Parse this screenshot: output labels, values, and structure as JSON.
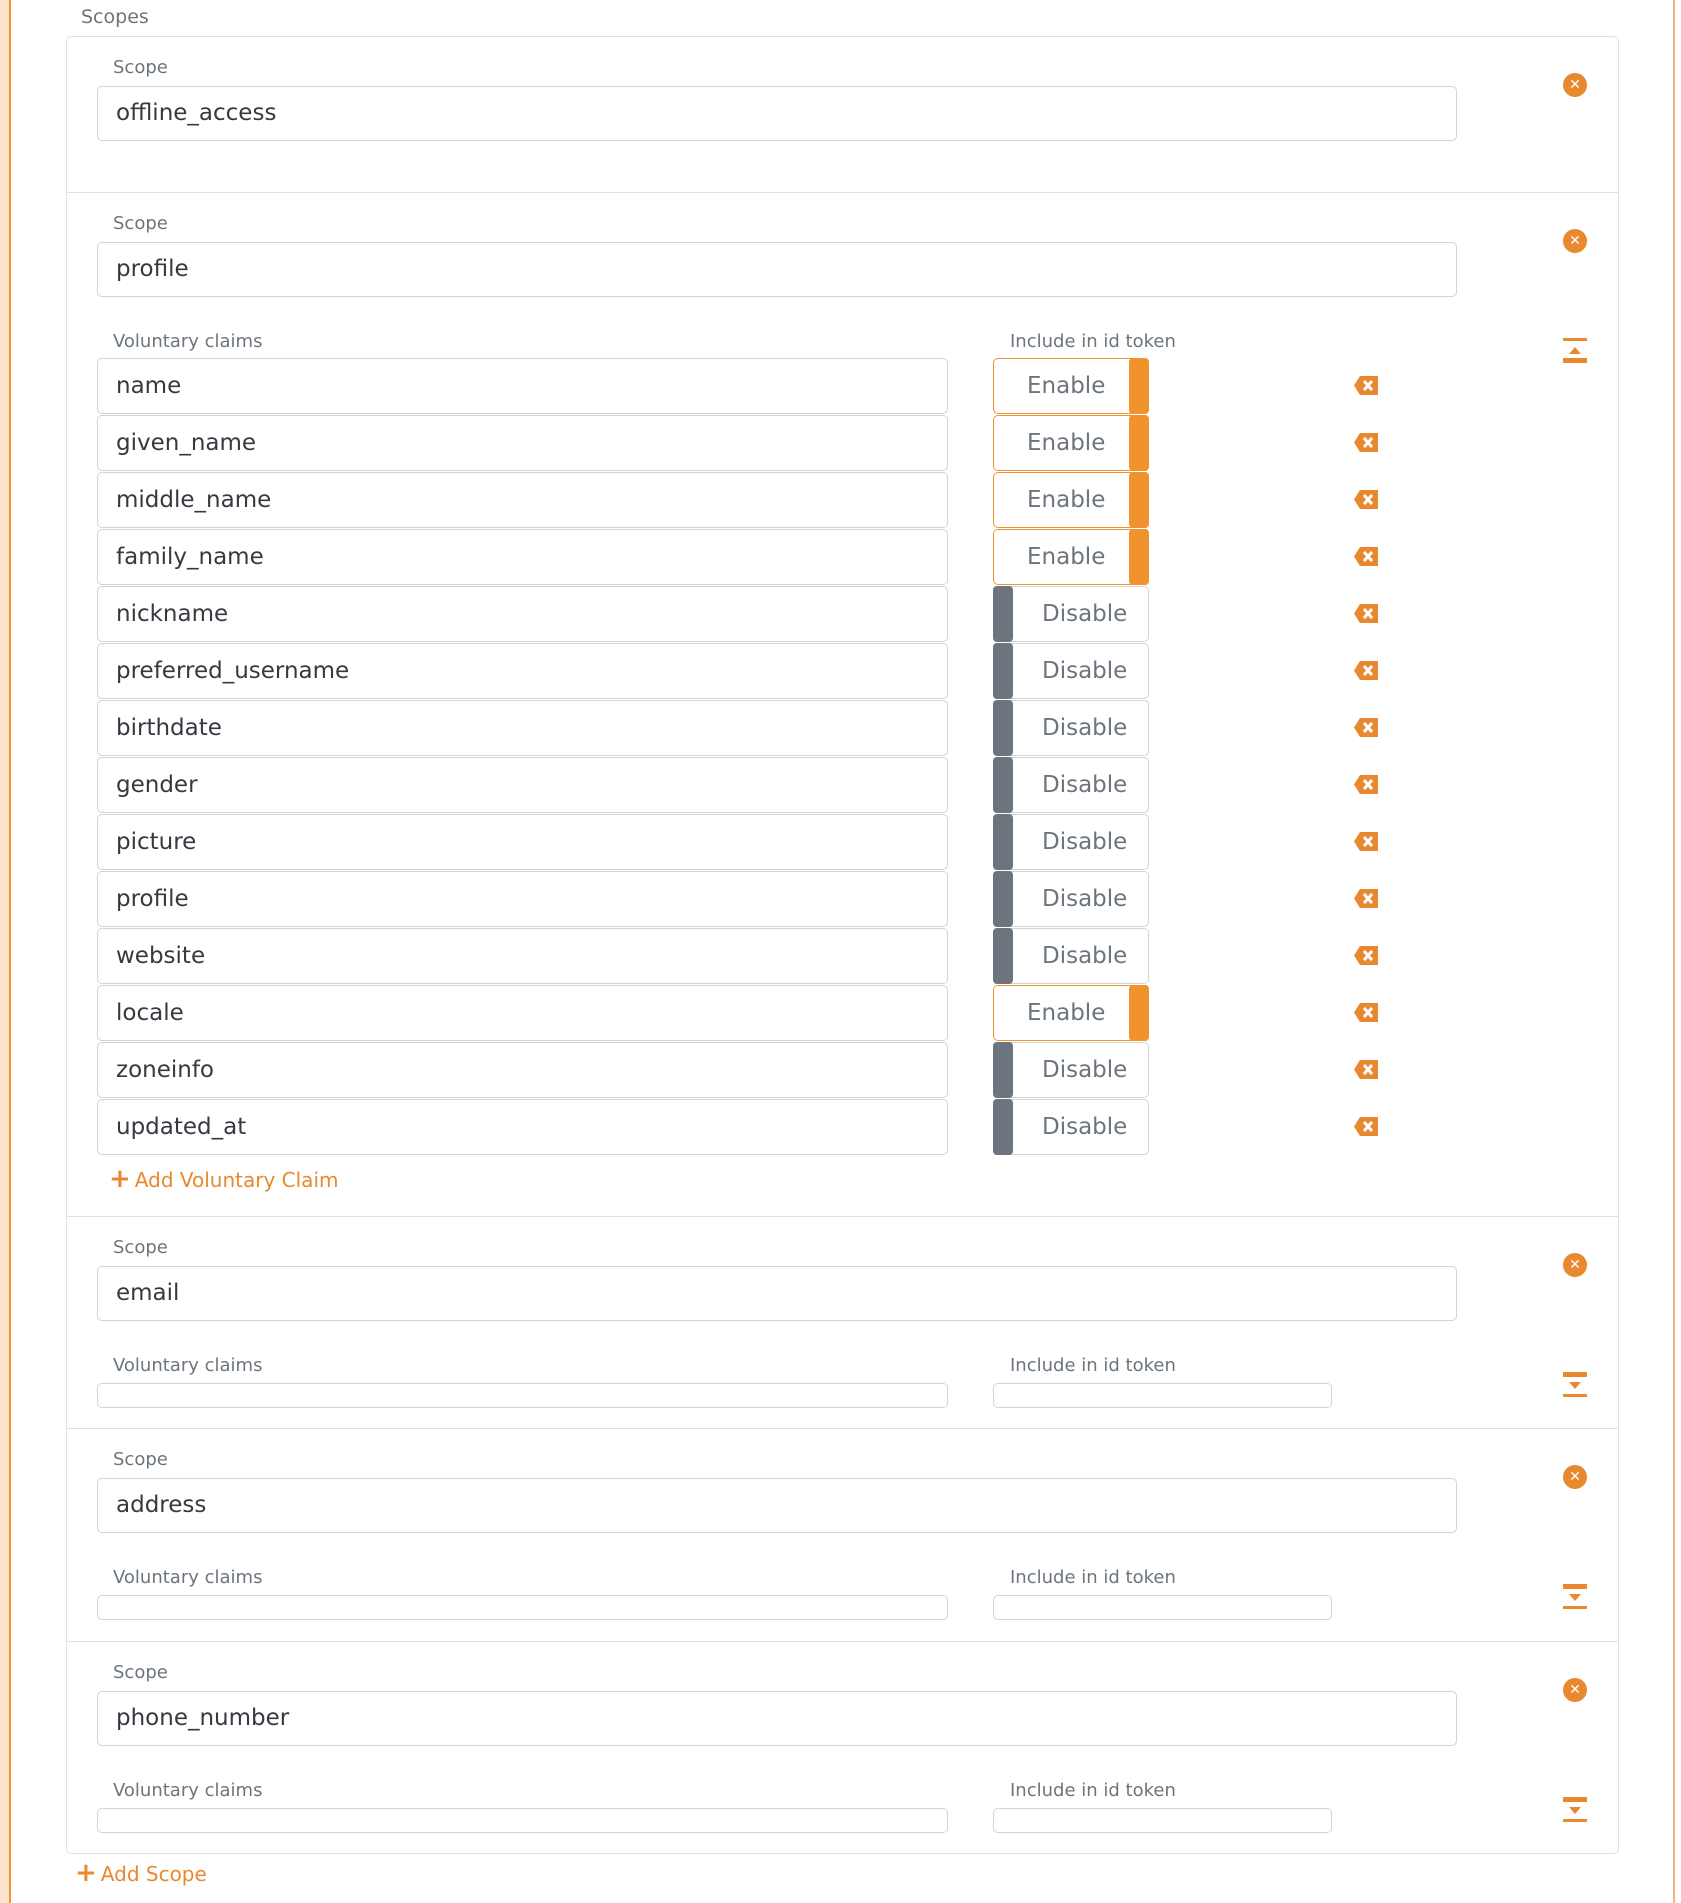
{
  "title": "Scopes",
  "labels": {
    "scope": "Scope",
    "voluntary_claims": "Voluntary claims",
    "include_in_id_token": "Include in id token"
  },
  "add_voluntary_claim": "Add Voluntary Claim",
  "add_scope": "Add Scope",
  "toggle_labels": {
    "on": "Enable",
    "off": "Disable"
  },
  "icons": {
    "remove_scope": "circle-x-icon",
    "remove_claim": "backspace-x-icon",
    "collapse": "collapse-up-icon",
    "expand": "expand-down-icon",
    "add": "plus-icon"
  },
  "colors": {
    "accent": "#f0932f",
    "toggle_off": "#6c757d"
  },
  "scopes": [
    {
      "name": "offline_access"
    },
    {
      "name": "profile",
      "expanded": true,
      "claims": [
        {
          "name": "name",
          "include": true
        },
        {
          "name": "given_name",
          "include": true
        },
        {
          "name": "middle_name",
          "include": true
        },
        {
          "name": "family_name",
          "include": true
        },
        {
          "name": "nickname",
          "include": false
        },
        {
          "name": "preferred_username",
          "include": false
        },
        {
          "name": "birthdate",
          "include": false
        },
        {
          "name": "gender",
          "include": false
        },
        {
          "name": "picture",
          "include": false
        },
        {
          "name": "profile",
          "include": false
        },
        {
          "name": "website",
          "include": false
        },
        {
          "name": "locale",
          "include": true
        },
        {
          "name": "zoneinfo",
          "include": false
        },
        {
          "name": "updated_at",
          "include": false
        }
      ]
    },
    {
      "name": "email",
      "expanded": false,
      "claims": []
    },
    {
      "name": "address",
      "expanded": false,
      "claims": []
    },
    {
      "name": "phone_number",
      "expanded": false,
      "claims": []
    }
  ]
}
